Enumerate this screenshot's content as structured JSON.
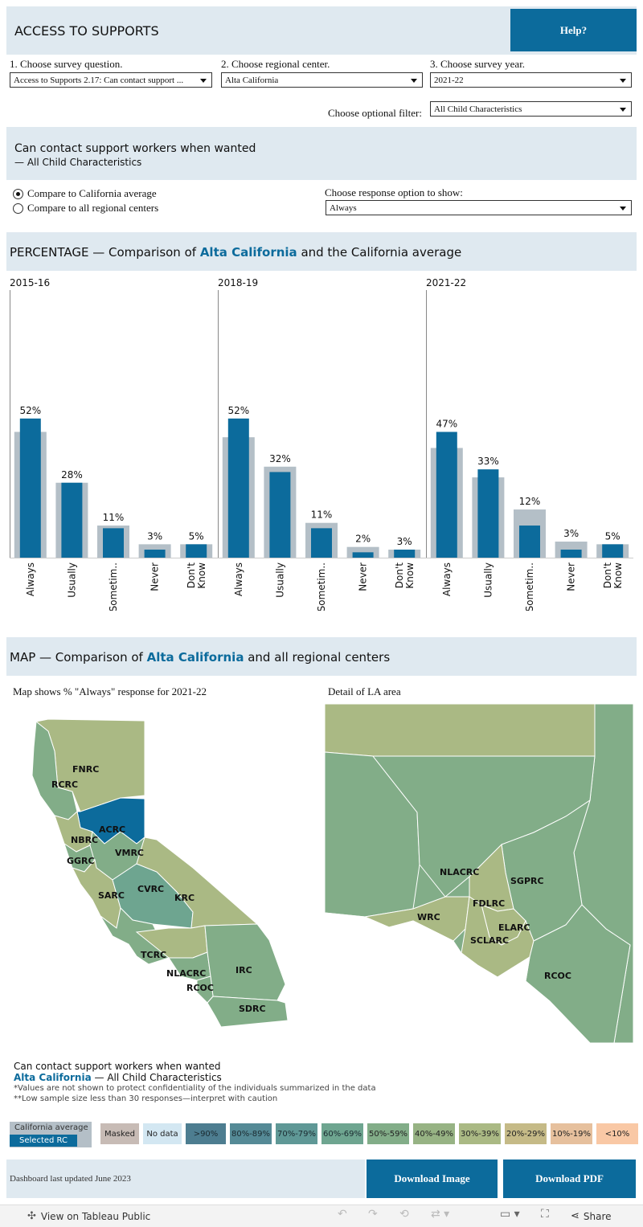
{
  "header": {
    "title": "ACCESS TO SUPPORTS",
    "help_label": "Help?"
  },
  "filters": {
    "q1_label": "1. Choose survey question.",
    "q1_value": "Access to Supports 2.17: Can contact support ...",
    "q2_label": "2. Choose regional center.",
    "q2_value": "Alta California",
    "q3_label": "3. Choose survey year.",
    "q3_value": "2021-22",
    "optional_label": "Choose optional filter:",
    "optional_value": "All Child Characteristics"
  },
  "question_banner": {
    "title": "Can contact support workers when wanted",
    "subtitle": "— All Child Characteristics"
  },
  "compare": {
    "radio1": "Compare to California average",
    "radio2": "Compare to all regional centers",
    "selected": "radio1",
    "response_label": "Choose response option to show:",
    "response_value": "Always"
  },
  "percentage_section": {
    "prefix": "PERCENTAGE — Comparison of ",
    "rc": "Alta California",
    "suffix": " and the California average"
  },
  "chart_data": {
    "type": "bar",
    "categories": [
      "Always",
      "Usually",
      "Sometim..",
      "Never",
      "Don't Know"
    ],
    "panels": [
      {
        "year": "2015-16",
        "values": [
          52,
          28,
          11,
          3,
          5
        ],
        "ca_avg": [
          47,
          28,
          12,
          5,
          5
        ],
        "labels": [
          "52%",
          "28%",
          "11%",
          "3%",
          "5%"
        ]
      },
      {
        "year": "2018-19",
        "values": [
          52,
          32,
          11,
          2,
          3
        ],
        "ca_avg": [
          45,
          34,
          13,
          4,
          3
        ],
        "labels": [
          "52%",
          "32%",
          "11%",
          "2%",
          "3%"
        ]
      },
      {
        "year": "2021-22",
        "values": [
          47,
          33,
          12,
          3,
          5
        ],
        "ca_avg": [
          41,
          30,
          18,
          6,
          5
        ],
        "labels": [
          "47%",
          "33%",
          "12%",
          "3%",
          "5%"
        ]
      }
    ],
    "ylim": [
      0,
      100
    ],
    "colors": {
      "selected": "#0c6b9c",
      "average": "#b4bfc7"
    }
  },
  "map_section": {
    "prefix": "MAP — Comparison of ",
    "rc": "Alta California",
    "suffix": " and all regional centers",
    "left_caption": "Map shows % \"Always\" response for 2021-22",
    "right_caption": "Detail of LA area",
    "state_labels": [
      "FNRC",
      "RCRC",
      "ACRC",
      "NBRC",
      "VMRC",
      "GGRC",
      "CVRC",
      "SARC",
      "KRC",
      "TCRC",
      "NLACRC",
      "IRC",
      "RCOC",
      "SDRC"
    ],
    "la_labels": [
      "NLACRC",
      "SGPRC",
      "FDLRC",
      "WRC",
      "ELARC",
      "SCLARC",
      "RCOC"
    ]
  },
  "notes": {
    "title": "Can contact support workers when wanted",
    "rc": "Alta California",
    "rc_suffix": " — All Child Characteristics",
    "note1": "*Values are not shown to protect confidentiality of the individuals summarized in the data",
    "note2": "**Low sample size less than 30 responses—interpret with caution"
  },
  "legend": {
    "ca_avg": "California average",
    "selected_rc": "Selected RC",
    "items": [
      {
        "label": "Masked",
        "color": "#c7bbb5"
      },
      {
        "label": "No data",
        "color": "#d3e7f2"
      },
      {
        "label": ">90%",
        "color": "#4d7d90"
      },
      {
        "label": "80%-89%",
        "color": "#558a96"
      },
      {
        "label": "70%-79%",
        "color": "#5f9896"
      },
      {
        "label": "60%-69%",
        "color": "#6ea590"
      },
      {
        "label": "50%-59%",
        "color": "#82ad88"
      },
      {
        "label": "40%-49%",
        "color": "#97b384"
      },
      {
        "label": "30%-39%",
        "color": "#aab984"
      },
      {
        "label": "20%-29%",
        "color": "#c5ba87"
      },
      {
        "label": "10%-19%",
        "color": "#e6c09d"
      },
      {
        "label": "<10%",
        "color": "#f9c8a5"
      }
    ]
  },
  "footer": {
    "updated": "Dashboard last updated June 2023",
    "download_image": "Download Image",
    "download_pdf": "Download PDF"
  },
  "toolbar": {
    "view_label": "View on Tableau Public",
    "share_label": "Share"
  }
}
